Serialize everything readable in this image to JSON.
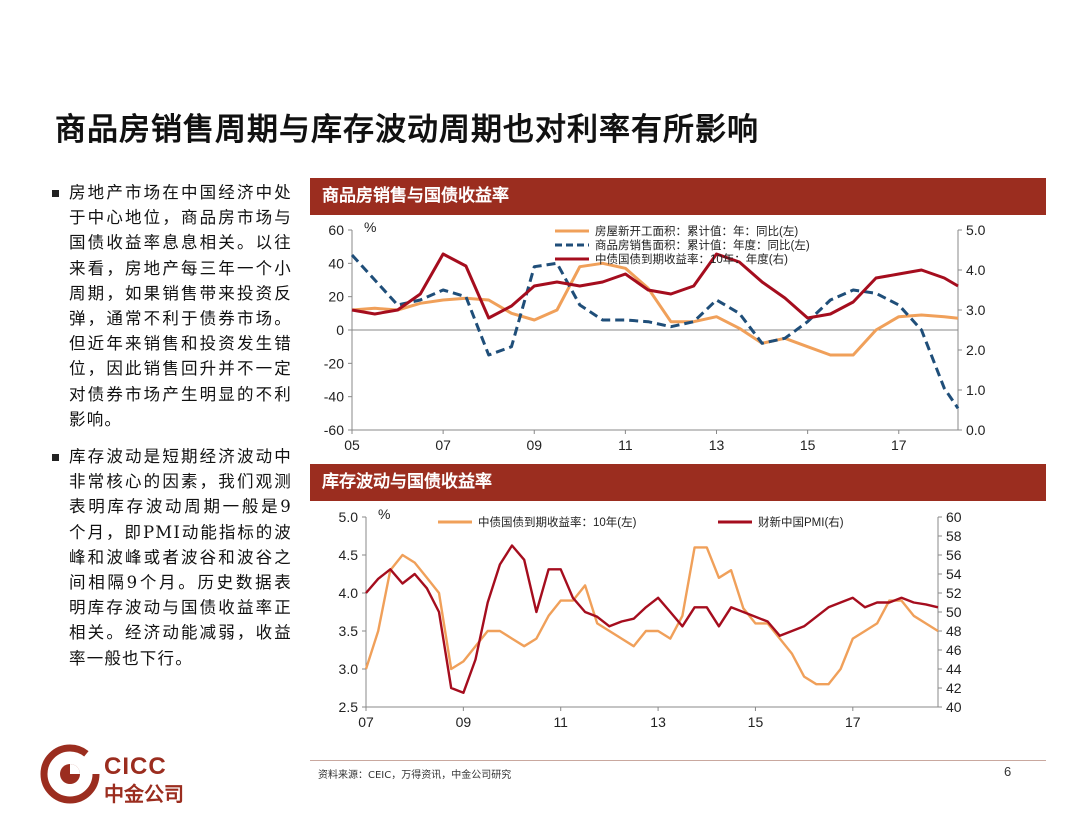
{
  "slide": {
    "title": "商品房销售周期与库存波动周期也对利率有所影响",
    "bullets": [
      "房地产市场在中国经济中处于中心地位，商品房市场与国债收益率息息相关。以往来看，房地产每三年一个小周期，如果销售带来投资反弹，通常不利于债券市场。但近年来销售和投资发生错位，因此销售回升并不一定对债券市场产生明显的不利影响。",
      "库存波动是短期经济波动中非常核心的因素，我们观测表明库存波动周期一般是9个月，即PMI动能指标的波峰和波峰或者波谷和波谷之间相隔9个月。历史数据表明库存波动与国债收益率正相关。经济动能减弱，收益率一般也下行。"
    ],
    "source": "资料来源：CEIC，万得资讯，中金公司研究",
    "page_number": "6",
    "logo": {
      "line1": "CICC",
      "line2": "中金公司"
    }
  },
  "colors": {
    "brand": "#9b2d1f",
    "orange": "#f0a05a",
    "darkblue": "#1f4e79",
    "darkred": "#a50d1e"
  },
  "chart_data": [
    {
      "type": "line",
      "title": "商品房销售与国债收益率",
      "y_unit": "%",
      "ylim_left": [
        -60,
        60
      ],
      "ylim_right": [
        0.0,
        5.0
      ],
      "yticks_left": [
        "60",
        "40",
        "20",
        "0",
        "-20",
        "-40",
        "-60"
      ],
      "yticks_right": [
        "5.0",
        "4.0",
        "3.0",
        "2.0",
        "1.0",
        "0.0"
      ],
      "xticks": [
        "05",
        "07",
        "09",
        "11",
        "13",
        "15",
        "17"
      ],
      "xlim": [
        2005,
        2018.3
      ],
      "series": [
        {
          "name": "房屋新开工面积：累计值：年：同比(左)",
          "axis": "left",
          "style": "solid",
          "color": "#f0a05a",
          "x": [
            2005,
            2005.5,
            2006,
            2006.5,
            2007,
            2007.5,
            2008,
            2008.5,
            2009,
            2009.5,
            2010,
            2010.5,
            2011,
            2011.5,
            2012,
            2012.5,
            2013,
            2013.5,
            2014,
            2014.5,
            2015,
            2015.5,
            2016,
            2016.5,
            2017,
            2017.5,
            2018,
            2018.3
          ],
          "y": [
            12,
            13,
            12,
            16,
            18,
            19,
            18,
            10,
            6,
            12,
            38,
            40,
            37,
            25,
            5,
            5,
            8,
            1,
            -8,
            -5,
            -10,
            -15,
            -15,
            0,
            8,
            9,
            8,
            7
          ]
        },
        {
          "name": "商品房销售面积：累计值：年度：同比(左)",
          "axis": "left",
          "style": "dashed",
          "color": "#1f4e79",
          "x": [
            2005,
            2005.5,
            2006,
            2006.5,
            2007,
            2007.5,
            2008,
            2008.5,
            2009,
            2009.5,
            2010,
            2010.5,
            2011,
            2011.5,
            2012,
            2012.5,
            2013,
            2013.5,
            2014,
            2014.5,
            2015,
            2015.5,
            2016,
            2016.5,
            2017,
            2017.5,
            2018,
            2018.3
          ],
          "y": [
            45,
            30,
            15,
            18,
            24,
            20,
            -15,
            -10,
            38,
            40,
            15,
            6,
            6,
            5,
            2,
            5,
            18,
            10,
            -8,
            -5,
            5,
            18,
            24,
            22,
            15,
            0,
            -35,
            -47
          ]
        },
        {
          "name": "中债国债到期收益率：10年：年度(右)",
          "axis": "right",
          "style": "solid",
          "color": "#a50d1e",
          "x": [
            2005,
            2005.5,
            2006,
            2006.5,
            2007,
            2007.5,
            2008,
            2008.5,
            2009,
            2009.5,
            2010,
            2010.5,
            2011,
            2011.5,
            2012,
            2012.5,
            2013,
            2013.5,
            2014,
            2014.5,
            2015,
            2015.5,
            2016,
            2016.5,
            2017,
            2017.5,
            2018,
            2018.3
          ],
          "y": [
            3.0,
            2.9,
            3.0,
            3.4,
            4.4,
            4.1,
            2.8,
            3.1,
            3.6,
            3.7,
            3.6,
            3.7,
            3.9,
            3.5,
            3.4,
            3.6,
            4.4,
            4.2,
            3.7,
            3.3,
            2.8,
            2.9,
            3.2,
            3.8,
            3.9,
            4.0,
            3.8,
            3.6
          ]
        }
      ]
    },
    {
      "type": "line",
      "title": "库存波动与国债收益率",
      "y_unit": "%",
      "ylim_left": [
        2.5,
        5.0
      ],
      "ylim_right": [
        40,
        60
      ],
      "yticks_left": [
        "5.0",
        "4.5",
        "4.0",
        "3.5",
        "3.0",
        "2.5"
      ],
      "yticks_right": [
        "60",
        "58",
        "56",
        "54",
        "52",
        "50",
        "48",
        "46",
        "44",
        "42",
        "40"
      ],
      "xticks": [
        "07",
        "09",
        "11",
        "13",
        "15",
        "17"
      ],
      "xlim": [
        2007,
        2018.75
      ],
      "series": [
        {
          "name": "中债国债到期收益率：10年(左)",
          "axis": "left",
          "style": "solid",
          "color": "#f0a05a",
          "x": [
            2007,
            2007.25,
            2007.5,
            2007.75,
            2008,
            2008.25,
            2008.5,
            2008.75,
            2009,
            2009.25,
            2009.5,
            2009.75,
            2010,
            2010.25,
            2010.5,
            2010.75,
            2011,
            2011.25,
            2011.5,
            2011.75,
            2012,
            2012.25,
            2012.5,
            2012.75,
            2013,
            2013.25,
            2013.5,
            2013.75,
            2014,
            2014.25,
            2014.5,
            2014.75,
            2015,
            2015.25,
            2015.5,
            2015.75,
            2016,
            2016.25,
            2016.5,
            2016.75,
            2017,
            2017.25,
            2017.5,
            2017.75,
            2018,
            2018.25,
            2018.5,
            2018.75
          ],
          "y": [
            3.0,
            3.5,
            4.3,
            4.5,
            4.4,
            4.2,
            4.0,
            3.0,
            3.1,
            3.3,
            3.5,
            3.5,
            3.4,
            3.3,
            3.4,
            3.7,
            3.9,
            3.9,
            4.1,
            3.6,
            3.5,
            3.4,
            3.3,
            3.5,
            3.5,
            3.4,
            3.7,
            4.6,
            4.6,
            4.2,
            4.3,
            3.8,
            3.6,
            3.6,
            3.4,
            3.2,
            2.9,
            2.8,
            2.8,
            3.0,
            3.4,
            3.5,
            3.6,
            3.9,
            3.9,
            3.7,
            3.6,
            3.5
          ]
        },
        {
          "name": "财新中国PMI(右)",
          "axis": "right",
          "style": "solid",
          "color": "#a50d1e",
          "x": [
            2007,
            2007.25,
            2007.5,
            2007.75,
            2008,
            2008.25,
            2008.5,
            2008.75,
            2009,
            2009.25,
            2009.5,
            2009.75,
            2010,
            2010.25,
            2010.5,
            2010.75,
            2011,
            2011.25,
            2011.5,
            2011.75,
            2012,
            2012.25,
            2012.5,
            2012.75,
            2013,
            2013.25,
            2013.5,
            2013.75,
            2014,
            2014.25,
            2014.5,
            2014.75,
            2015,
            2015.25,
            2015.5,
            2015.75,
            2016,
            2016.25,
            2016.5,
            2016.75,
            2017,
            2017.25,
            2017.5,
            2017.75,
            2018,
            2018.25,
            2018.5,
            2018.75
          ],
          "y": [
            52.0,
            53.5,
            54.5,
            53.0,
            54.0,
            52.5,
            50.0,
            42.0,
            41.5,
            45.0,
            51.0,
            55.0,
            57.0,
            55.5,
            50.0,
            54.5,
            54.5,
            51.5,
            50.0,
            49.5,
            48.5,
            49.0,
            49.3,
            50.5,
            51.5,
            50.0,
            48.5,
            50.5,
            50.5,
            48.5,
            50.5,
            50.0,
            49.5,
            49.0,
            47.5,
            48.0,
            48.5,
            49.5,
            50.5,
            51.0,
            51.5,
            50.5,
            51.0,
            51.0,
            51.5,
            51.0,
            50.8,
            50.5
          ]
        }
      ]
    }
  ]
}
